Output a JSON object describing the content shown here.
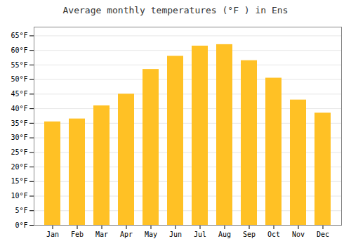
{
  "chart_data": {
    "type": "bar",
    "title": "Average monthly temperatures (°F ) in Ens",
    "categories": [
      "Jan",
      "Feb",
      "Mar",
      "Apr",
      "May",
      "Jun",
      "Jul",
      "Aug",
      "Sep",
      "Oct",
      "Nov",
      "Dec"
    ],
    "values": [
      35.5,
      36.5,
      41.0,
      45.0,
      53.5,
      58.0,
      61.5,
      62.0,
      56.5,
      50.5,
      43.0,
      38.5
    ],
    "color": "#FFC125",
    "ylim": [
      0,
      68
    ],
    "yticks": [
      {
        "value": 0,
        "label": "0°F"
      },
      {
        "value": 5,
        "label": "5°F"
      },
      {
        "value": 10,
        "label": "10°F"
      },
      {
        "value": 15,
        "label": "15°F"
      },
      {
        "value": 20,
        "label": "20°F"
      },
      {
        "value": 25,
        "label": "25°F"
      },
      {
        "value": 30,
        "label": "30°F"
      },
      {
        "value": 35,
        "label": "35°F"
      },
      {
        "value": 40,
        "label": "40°F"
      },
      {
        "value": 45,
        "label": "45°F"
      },
      {
        "value": 50,
        "label": "50°F"
      },
      {
        "value": 55,
        "label": "55°F"
      },
      {
        "value": 60,
        "label": "60°F"
      },
      {
        "value": 65,
        "label": "65°F"
      }
    ],
    "grid": true
  }
}
